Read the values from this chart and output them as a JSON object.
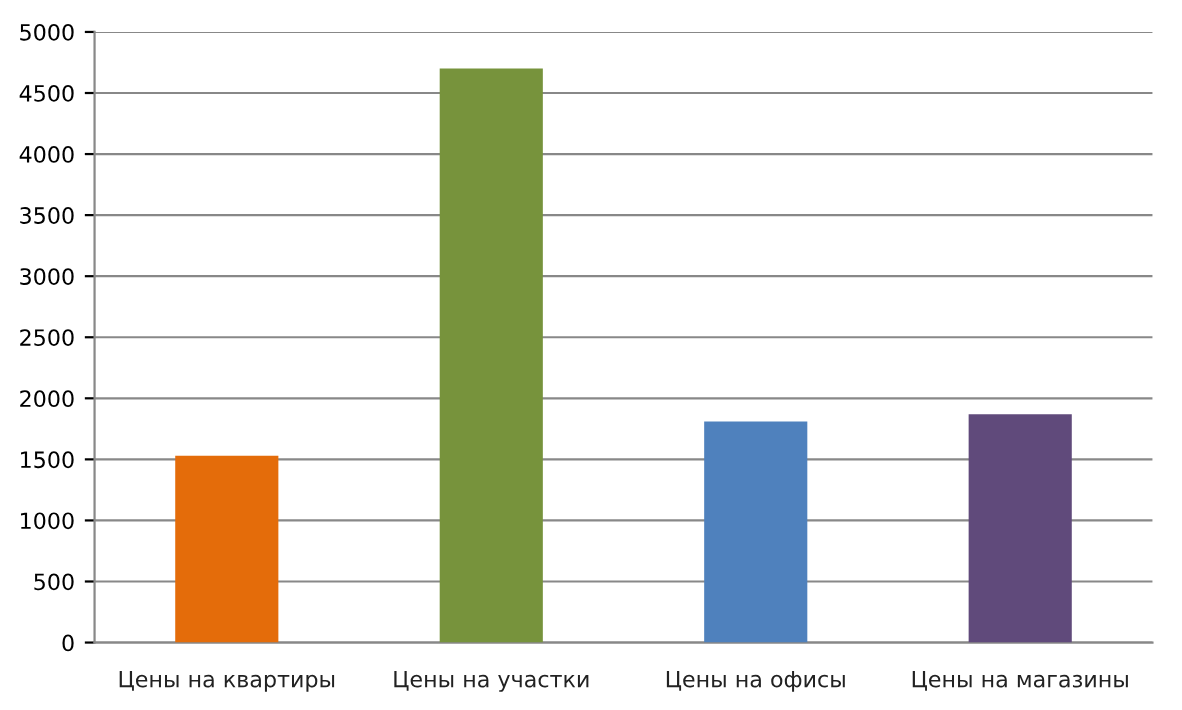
{
  "chart_data": {
    "type": "bar",
    "categories": [
      "Цены на квартиры",
      "Цены на участки",
      "Цены на офисы",
      "Цены на магазины"
    ],
    "values": [
      1530,
      4700,
      1810,
      1870
    ],
    "colors": [
      "#e46c0a",
      "#77933c",
      "#4f81bd",
      "#604a7b"
    ],
    "ylim": [
      0,
      5000
    ],
    "yticks": [
      0,
      500,
      1000,
      1500,
      2000,
      2500,
      3000,
      3500,
      4000,
      4500,
      5000
    ],
    "grid": "y",
    "legend": false
  }
}
